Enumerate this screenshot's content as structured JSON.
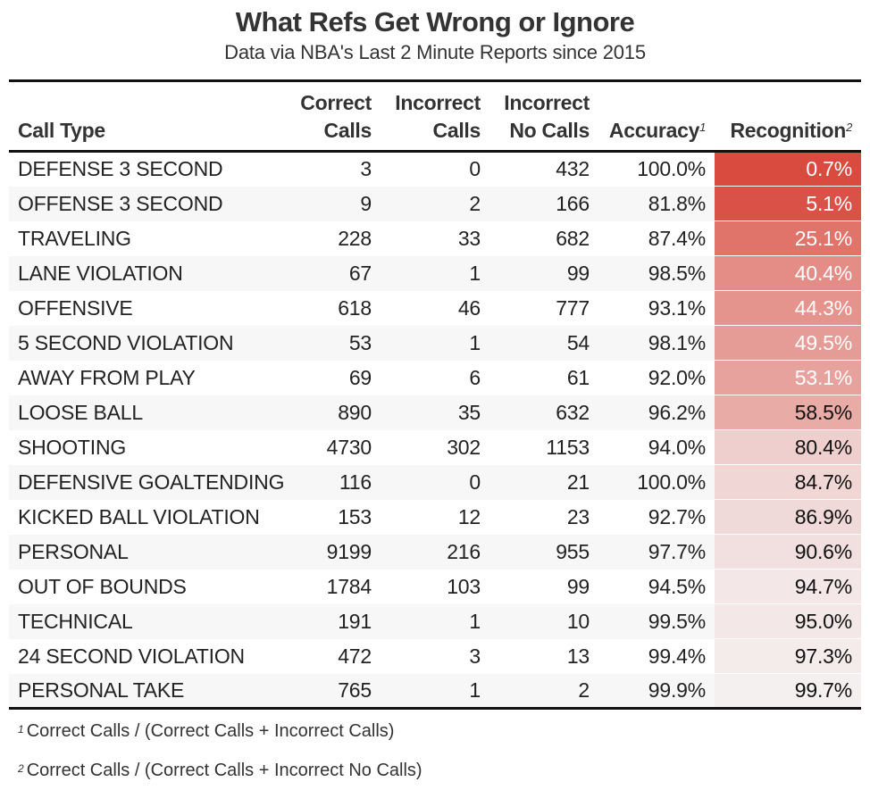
{
  "title": "What Refs Get Wrong or Ignore",
  "subtitle": "Data via NBA's Last 2 Minute Reports since 2015",
  "columns": {
    "call_type": "Call Type",
    "correct_line1": "Correct",
    "correct_line2": "Calls",
    "incorrect_line1": "Incorrect",
    "incorrect_line2": "Calls",
    "nocalls_line1": "Incorrect",
    "nocalls_line2": "No Calls",
    "accuracy": "Accuracy",
    "accuracy_note": "1",
    "recognition": "Recognition",
    "recognition_note": "2"
  },
  "rows": [
    {
      "call_type": "DEFENSE 3 SECOND",
      "correct": "3",
      "incorrect": "0",
      "no_calls": "432",
      "accuracy": "100.0%",
      "recognition": "0.7%",
      "recognition_value": 0.7
    },
    {
      "call_type": "OFFENSE 3 SECOND",
      "correct": "9",
      "incorrect": "2",
      "no_calls": "166",
      "accuracy": "81.8%",
      "recognition": "5.1%",
      "recognition_value": 5.1
    },
    {
      "call_type": "TRAVELING",
      "correct": "228",
      "incorrect": "33",
      "no_calls": "682",
      "accuracy": "87.4%",
      "recognition": "25.1%",
      "recognition_value": 25.1
    },
    {
      "call_type": "LANE VIOLATION",
      "correct": "67",
      "incorrect": "1",
      "no_calls": "99",
      "accuracy": "98.5%",
      "recognition": "40.4%",
      "recognition_value": 40.4
    },
    {
      "call_type": "OFFENSIVE",
      "correct": "618",
      "incorrect": "46",
      "no_calls": "777",
      "accuracy": "93.1%",
      "recognition": "44.3%",
      "recognition_value": 44.3
    },
    {
      "call_type": "5 SECOND VIOLATION",
      "correct": "53",
      "incorrect": "1",
      "no_calls": "54",
      "accuracy": "98.1%",
      "recognition": "49.5%",
      "recognition_value": 49.5
    },
    {
      "call_type": "AWAY FROM PLAY",
      "correct": "69",
      "incorrect": "6",
      "no_calls": "61",
      "accuracy": "92.0%",
      "recognition": "53.1%",
      "recognition_value": 53.1
    },
    {
      "call_type": "LOOSE BALL",
      "correct": "890",
      "incorrect": "35",
      "no_calls": "632",
      "accuracy": "96.2%",
      "recognition": "58.5%",
      "recognition_value": 58.5
    },
    {
      "call_type": "SHOOTING",
      "correct": "4730",
      "incorrect": "302",
      "no_calls": "1153",
      "accuracy": "94.0%",
      "recognition": "80.4%",
      "recognition_value": 80.4
    },
    {
      "call_type": "DEFENSIVE GOALTENDING",
      "correct": "116",
      "incorrect": "0",
      "no_calls": "21",
      "accuracy": "100.0%",
      "recognition": "84.7%",
      "recognition_value": 84.7
    },
    {
      "call_type": "KICKED BALL VIOLATION",
      "correct": "153",
      "incorrect": "12",
      "no_calls": "23",
      "accuracy": "92.7%",
      "recognition": "86.9%",
      "recognition_value": 86.9
    },
    {
      "call_type": "PERSONAL",
      "correct": "9199",
      "incorrect": "216",
      "no_calls": "955",
      "accuracy": "97.7%",
      "recognition": "90.6%",
      "recognition_value": 90.6
    },
    {
      "call_type": "OUT OF BOUNDS",
      "correct": "1784",
      "incorrect": "103",
      "no_calls": "99",
      "accuracy": "94.5%",
      "recognition": "94.7%",
      "recognition_value": 94.7
    },
    {
      "call_type": "TECHNICAL",
      "correct": "191",
      "incorrect": "1",
      "no_calls": "10",
      "accuracy": "99.5%",
      "recognition": "95.0%",
      "recognition_value": 95.0
    },
    {
      "call_type": "24 SECOND VIOLATION",
      "correct": "472",
      "incorrect": "3",
      "no_calls": "13",
      "accuracy": "99.4%",
      "recognition": "97.3%",
      "recognition_value": 97.3
    },
    {
      "call_type": "PERSONAL TAKE",
      "correct": "765",
      "incorrect": "1",
      "no_calls": "2",
      "accuracy": "99.9%",
      "recognition": "99.7%",
      "recognition_value": 99.7
    }
  ],
  "footnotes": [
    {
      "mark": "1",
      "text": "Correct Calls / (Correct Calls + Incorrect Calls)"
    },
    {
      "mark": "2",
      "text": "Correct Calls / (Correct Calls + Incorrect No Calls)"
    }
  ],
  "colors": {
    "recognition_low": "#d94a3e",
    "recognition_high": "#f4f0f0"
  }
}
